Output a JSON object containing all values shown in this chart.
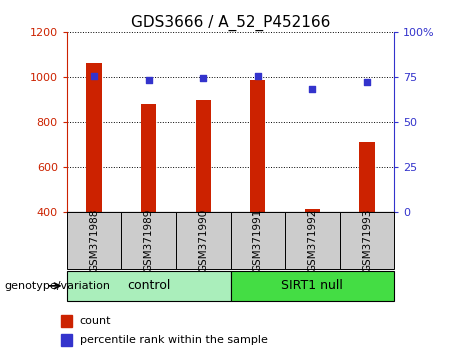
{
  "title": "GDS3666 / A_52_P452166",
  "samples": [
    "GSM371988",
    "GSM371989",
    "GSM371990",
    "GSM371991",
    "GSM371992",
    "GSM371993"
  ],
  "counts": [
    1060,
    880,
    900,
    985,
    415,
    710
  ],
  "percentiles": [
    75.5,
    73.5,
    74.5,
    75.5,
    68.5,
    72.5
  ],
  "ylim_left": [
    400,
    1200
  ],
  "ylim_right": [
    0,
    100
  ],
  "yticks_left": [
    400,
    600,
    800,
    1000,
    1200
  ],
  "yticks_right": [
    0,
    25,
    50,
    75,
    100
  ],
  "bar_color": "#cc2200",
  "dot_color": "#3333cc",
  "bar_width": 0.28,
  "group_ranges": [
    [
      0,
      2,
      "control",
      "#aaeebb"
    ],
    [
      3,
      5,
      "SIRT1 null",
      "#44dd44"
    ]
  ],
  "legend_items": [
    {
      "label": "count",
      "color": "#cc2200"
    },
    {
      "label": "percentile rank within the sample",
      "color": "#3333cc"
    }
  ],
  "group_label": "genotype/variation",
  "title_fontsize": 11,
  "axis_fontsize": 8,
  "label_fontsize": 7.5,
  "group_fontsize": 9,
  "legend_fontsize": 8
}
